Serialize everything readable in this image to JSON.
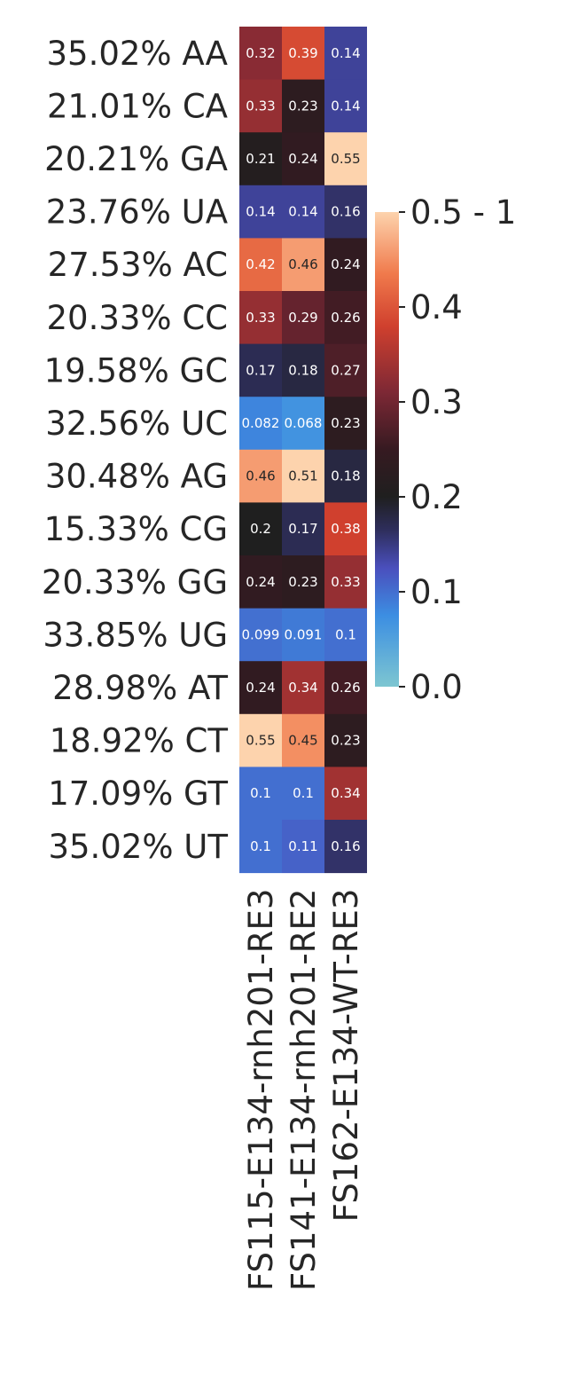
{
  "chart_data": {
    "type": "heatmap",
    "rows": [
      "35.02% AA",
      "21.01% CA",
      "20.21% GA",
      "23.76% UA",
      "27.53% AC",
      "20.33% CC",
      "19.58% GC",
      "32.56% UC",
      "30.48% AG",
      "15.33% CG",
      "20.33% GG",
      "33.85% UG",
      "28.98% AT",
      "18.92% CT",
      "17.09% GT",
      "35.02% UT"
    ],
    "columns": [
      "FS115-E134-rnh201-RE3",
      "FS141-E134-rnh201-RE2",
      "FS162-E134-WT-RE3"
    ],
    "values": [
      [
        0.32,
        0.39,
        0.14
      ],
      [
        0.33,
        0.23,
        0.14
      ],
      [
        0.21,
        0.24,
        0.55
      ],
      [
        0.14,
        0.14,
        0.16
      ],
      [
        0.42,
        0.46,
        0.24
      ],
      [
        0.33,
        0.29,
        0.26
      ],
      [
        0.17,
        0.18,
        0.27
      ],
      [
        0.082,
        0.068,
        0.23
      ],
      [
        0.46,
        0.51,
        0.18
      ],
      [
        0.2,
        0.17,
        0.38
      ],
      [
        0.24,
        0.23,
        0.33
      ],
      [
        0.099,
        0.091,
        0.1
      ],
      [
        0.24,
        0.34,
        0.26
      ],
      [
        0.55,
        0.45,
        0.23
      ],
      [
        0.1,
        0.1,
        0.34
      ],
      [
        0.1,
        0.11,
        0.16
      ]
    ],
    "colorbar": {
      "range": [
        0,
        0.5
      ],
      "ticks": [
        0.0,
        0.1,
        0.2,
        0.3,
        0.4,
        0.5
      ],
      "tick_labels": [
        "0.0",
        "0.1",
        "0.2",
        "0.3",
        "0.4",
        "0.5 - 1"
      ],
      "colormap": "icefire"
    },
    "legend": "right"
  }
}
